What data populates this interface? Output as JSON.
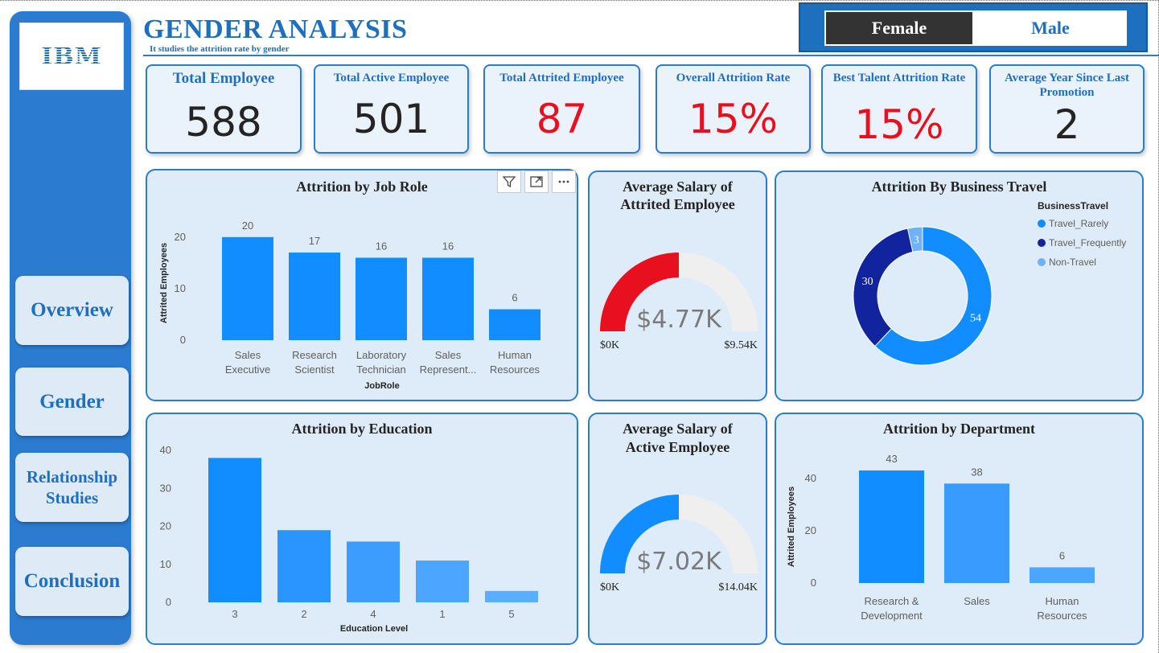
{
  "sidebar": {
    "logo_text": "IBM",
    "nav": {
      "overview": "Overview",
      "gender": "Gender",
      "relationship_line1": "Relationship",
      "relationship_line2": "Studies",
      "conclusion": "Conclusion"
    }
  },
  "header": {
    "title": "GENDER ANALYSIS",
    "subtitle": "It studies the attrition rate by gender"
  },
  "toggle": {
    "female": "Female",
    "male": "Male",
    "selected": "Female"
  },
  "kpis": [
    {
      "title": "Total Employee",
      "value": "588",
      "color": "#252423"
    },
    {
      "title": "Total Active Employee",
      "value": "501",
      "color": "#252423"
    },
    {
      "title": "Total Attrited Employee",
      "value": "87",
      "color": "#e8101e"
    },
    {
      "title": "Overall Attrition Rate",
      "value": "15%",
      "color": "#e8101e"
    },
    {
      "title": "Best Talent Attrition Rate",
      "value": "15%",
      "color": "#e8101e"
    },
    {
      "title": "Average Year Since Last Promotion",
      "value": "2",
      "color": "#252423"
    }
  ],
  "colors": {
    "accent": "#2b7bd0",
    "bar_primary": "#118dff",
    "bar_secondary": "#3a9bff",
    "gauge_red": "#e8101e",
    "gauge_blue": "#118dff",
    "gauge_track": "#efefef",
    "donut_travel_rarely": "#118dff",
    "donut_travel_frequently": "#12239e",
    "donut_non_travel": "#6cb2ff"
  },
  "visual_header_icons": [
    "filter-icon",
    "focus-mode-icon",
    "more-options-icon"
  ],
  "chart_data": [
    {
      "id": "attrition_by_job_role",
      "type": "bar",
      "title": "Attrition by Job Role",
      "xlabel": "JobRole",
      "ylabel": "Attrited Employees",
      "categories": [
        "Sales Executive",
        "Research Scientist",
        "Laboratory Technician",
        "Sales Represent...",
        "Human Resources"
      ],
      "category_lines": [
        [
          "Sales",
          "Executive"
        ],
        [
          "Research",
          "Scientist"
        ],
        [
          "Laboratory",
          "Technician"
        ],
        [
          "Sales",
          "Represent..."
        ],
        [
          "Human",
          "Resources"
        ]
      ],
      "values": [
        20,
        17,
        16,
        16,
        6
      ],
      "yticks": [
        0,
        10,
        20
      ],
      "ylim": [
        0,
        22
      ],
      "data_labels": true
    },
    {
      "id": "avg_salary_attrited",
      "type": "gauge",
      "title": "Average Salary of Attrited Employee",
      "title_lines": [
        "Average Salary of",
        "Attrited Employee"
      ],
      "value": 4.77,
      "value_label": "$4.77K",
      "min": 0,
      "max": 9.54,
      "min_label": "$0K",
      "max_label": "$9.54K"
    },
    {
      "id": "attrition_by_business_travel",
      "type": "pie",
      "title": "Attrition By Business Travel",
      "legend_title": "BusinessTravel",
      "legend_position": "top-right",
      "series": [
        {
          "name": "Travel_Rarely",
          "value": 54
        },
        {
          "name": "Travel_Frequently",
          "value": 30
        },
        {
          "name": "Non-Travel",
          "value": 3
        }
      ]
    },
    {
      "id": "attrition_by_education",
      "type": "bar",
      "title": "Attrition by Education",
      "xlabel": "Education Level",
      "ylabel": "",
      "categories": [
        "3",
        "2",
        "4",
        "1",
        "5"
      ],
      "values": [
        38,
        19,
        16,
        11,
        3
      ],
      "yticks": [
        0,
        10,
        20,
        30,
        40
      ],
      "ylim": [
        0,
        40
      ],
      "data_labels": false
    },
    {
      "id": "avg_salary_active",
      "type": "gauge",
      "title": "Average Salary of Active Employee",
      "title_lines": [
        "Average Salary of",
        "Active Employee"
      ],
      "value": 7.02,
      "value_label": "$7.02K",
      "min": 0,
      "max": 14.04,
      "min_label": "$0K",
      "max_label": "$14.04K"
    },
    {
      "id": "attrition_by_department",
      "type": "bar",
      "title": "Attrition by Department",
      "xlabel": "",
      "ylabel": "Attrited Employees",
      "categories": [
        "Research & Development",
        "Sales",
        "Human Resources"
      ],
      "category_lines": [
        [
          "Research &",
          "Development"
        ],
        [
          "Sales"
        ],
        [
          "Human",
          "Resources"
        ]
      ],
      "values": [
        43,
        38,
        6
      ],
      "yticks": [
        0,
        20,
        40
      ],
      "ylim": [
        0,
        47
      ],
      "data_labels": true
    }
  ]
}
